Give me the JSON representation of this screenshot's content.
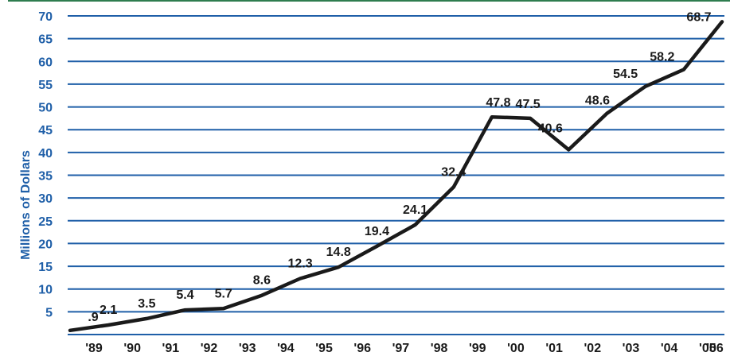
{
  "chart_data": {
    "type": "line",
    "title": "",
    "xlabel": "",
    "ylabel": "Millions of Dollars",
    "ylim": [
      0,
      70
    ],
    "yticks": [
      5,
      10,
      15,
      20,
      25,
      30,
      35,
      40,
      45,
      50,
      55,
      60,
      65,
      70
    ],
    "grid": true,
    "categories": [
      "'89",
      "'90",
      "'91",
      "'92",
      "'93",
      "'94",
      "'95",
      "'96",
      "'97",
      "'98",
      "'99",
      "'00",
      "'01",
      "'02",
      "'03",
      "'04",
      "'05",
      "'06"
    ],
    "series": [
      {
        "values": [
          0.9,
          2.1,
          3.5,
          5.4,
          5.7,
          8.6,
          12.3,
          14.8,
          19.4,
          24.1,
          32.4,
          47.8,
          47.5,
          40.6,
          48.6,
          54.5,
          58.2,
          68.7
        ],
        "labels": [
          ".9",
          "2.1",
          "3.5",
          "5.4",
          "5.7",
          "8.6",
          "12.3",
          "14.8",
          "19.4",
          "24.1",
          "32.4",
          "47.8",
          "47.5",
          "40.6",
          "48.6",
          "54.5",
          "58.2",
          "68.7"
        ]
      }
    ],
    "colors": {
      "line": "#1a1a1a",
      "grid": "#1f5fa8",
      "axis_text": "#1f5fa8",
      "top_rule": "#2e7d4f"
    }
  }
}
